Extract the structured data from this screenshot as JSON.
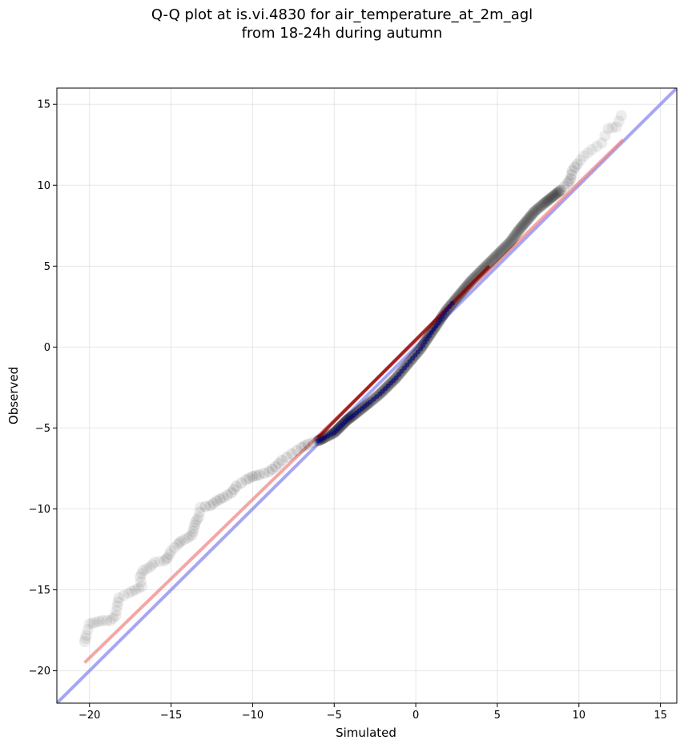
{
  "chart_data": {
    "type": "scatter",
    "title_line1": "Q-Q plot at is.vi.4830 for air_temperature_at_2m_agl",
    "title_line2": "from 18-24h during autumn",
    "xlabel": "Simulated",
    "ylabel": "Observed",
    "xlim": [
      -22,
      16
    ],
    "ylim": [
      -22,
      16
    ],
    "xticks": [
      -20,
      -15,
      -10,
      -5,
      0,
      5,
      10,
      15
    ],
    "yticks": [
      -20,
      -15,
      -10,
      -5,
      0,
      5,
      10,
      15
    ],
    "grid": true,
    "colors": {
      "points": "#000000",
      "fit_line": "#f08080",
      "identity_line": "#8080f0",
      "center_line": "#8b0000",
      "center_points": "#000080"
    },
    "quantile_curve": [
      [
        -20.3,
        -18.2
      ],
      [
        -20.2,
        -17.8
      ],
      [
        -20.0,
        -17.1
      ],
      [
        -19.6,
        -17.0
      ],
      [
        -19.2,
        -16.9
      ],
      [
        -18.7,
        -16.9
      ],
      [
        -18.4,
        -16.6
      ],
      [
        -18.3,
        -16.0
      ],
      [
        -18.2,
        -15.5
      ],
      [
        -17.6,
        -15.2
      ],
      [
        -17.2,
        -15.0
      ],
      [
        -16.8,
        -14.8
      ],
      [
        -16.9,
        -14.2
      ],
      [
        -16.7,
        -13.8
      ],
      [
        -16.3,
        -13.6
      ],
      [
        -16.0,
        -13.3
      ],
      [
        -15.4,
        -13.2
      ],
      [
        -15.2,
        -13.0
      ],
      [
        -15.0,
        -12.6
      ],
      [
        -14.6,
        -12.2
      ],
      [
        -14.4,
        -12.0
      ],
      [
        -14.0,
        -11.8
      ],
      [
        -13.7,
        -11.6
      ],
      [
        -13.6,
        -11.2
      ],
      [
        -13.5,
        -10.8
      ],
      [
        -13.3,
        -10.5
      ],
      [
        -13.2,
        -9.9
      ],
      [
        -12.6,
        -9.8
      ],
      [
        -12.2,
        -9.5
      ],
      [
        -11.8,
        -9.3
      ],
      [
        -11.3,
        -9.0
      ],
      [
        -11.0,
        -8.6
      ],
      [
        -10.4,
        -8.2
      ],
      [
        -10.0,
        -8.0
      ],
      [
        -9.6,
        -7.9
      ],
      [
        -9.0,
        -7.7
      ],
      [
        -8.6,
        -7.4
      ],
      [
        -8.2,
        -7.0
      ],
      [
        -7.6,
        -6.6
      ],
      [
        -7.0,
        -6.2
      ],
      [
        -6.6,
        -6.0
      ],
      [
        -6.0,
        -5.8
      ],
      [
        -5.6,
        -5.6
      ],
      [
        -5.0,
        -5.3
      ],
      [
        -4.6,
        -4.9
      ],
      [
        -4.2,
        -4.5
      ],
      [
        -3.8,
        -4.2
      ],
      [
        -3.3,
        -3.8
      ],
      [
        -2.8,
        -3.4
      ],
      [
        -2.2,
        -2.9
      ],
      [
        -1.7,
        -2.4
      ],
      [
        -1.2,
        -1.9
      ],
      [
        -0.7,
        -1.3
      ],
      [
        -0.2,
        -0.7
      ],
      [
        0.3,
        -0.1
      ],
      [
        0.7,
        0.5
      ],
      [
        1.1,
        1.1
      ],
      [
        1.5,
        1.7
      ],
      [
        1.9,
        2.3
      ],
      [
        2.4,
        2.9
      ],
      [
        2.9,
        3.5
      ],
      [
        3.4,
        4.1
      ],
      [
        4.0,
        4.7
      ],
      [
        4.6,
        5.3
      ],
      [
        5.2,
        5.9
      ],
      [
        5.8,
        6.5
      ],
      [
        6.3,
        7.2
      ],
      [
        6.8,
        7.8
      ],
      [
        7.3,
        8.4
      ],
      [
        7.9,
        8.9
      ],
      [
        8.4,
        9.3
      ],
      [
        8.9,
        9.7
      ],
      [
        9.3,
        10.1
      ],
      [
        9.5,
        10.4
      ],
      [
        9.6,
        10.9
      ],
      [
        9.9,
        11.3
      ],
      [
        10.3,
        11.8
      ],
      [
        10.8,
        12.2
      ],
      [
        11.4,
        12.6
      ],
      [
        11.8,
        13.5
      ],
      [
        12.3,
        13.6
      ],
      [
        12.6,
        14.3
      ]
    ],
    "fit_line": [
      [
        -20.3,
        -19.5
      ],
      [
        12.7,
        12.8
      ]
    ],
    "identity_line": [
      [
        -22,
        -22
      ],
      [
        16,
        16
      ]
    ],
    "center_line": [
      [
        -6.0,
        -5.6
      ],
      [
        4.5,
        5.0
      ]
    ]
  }
}
